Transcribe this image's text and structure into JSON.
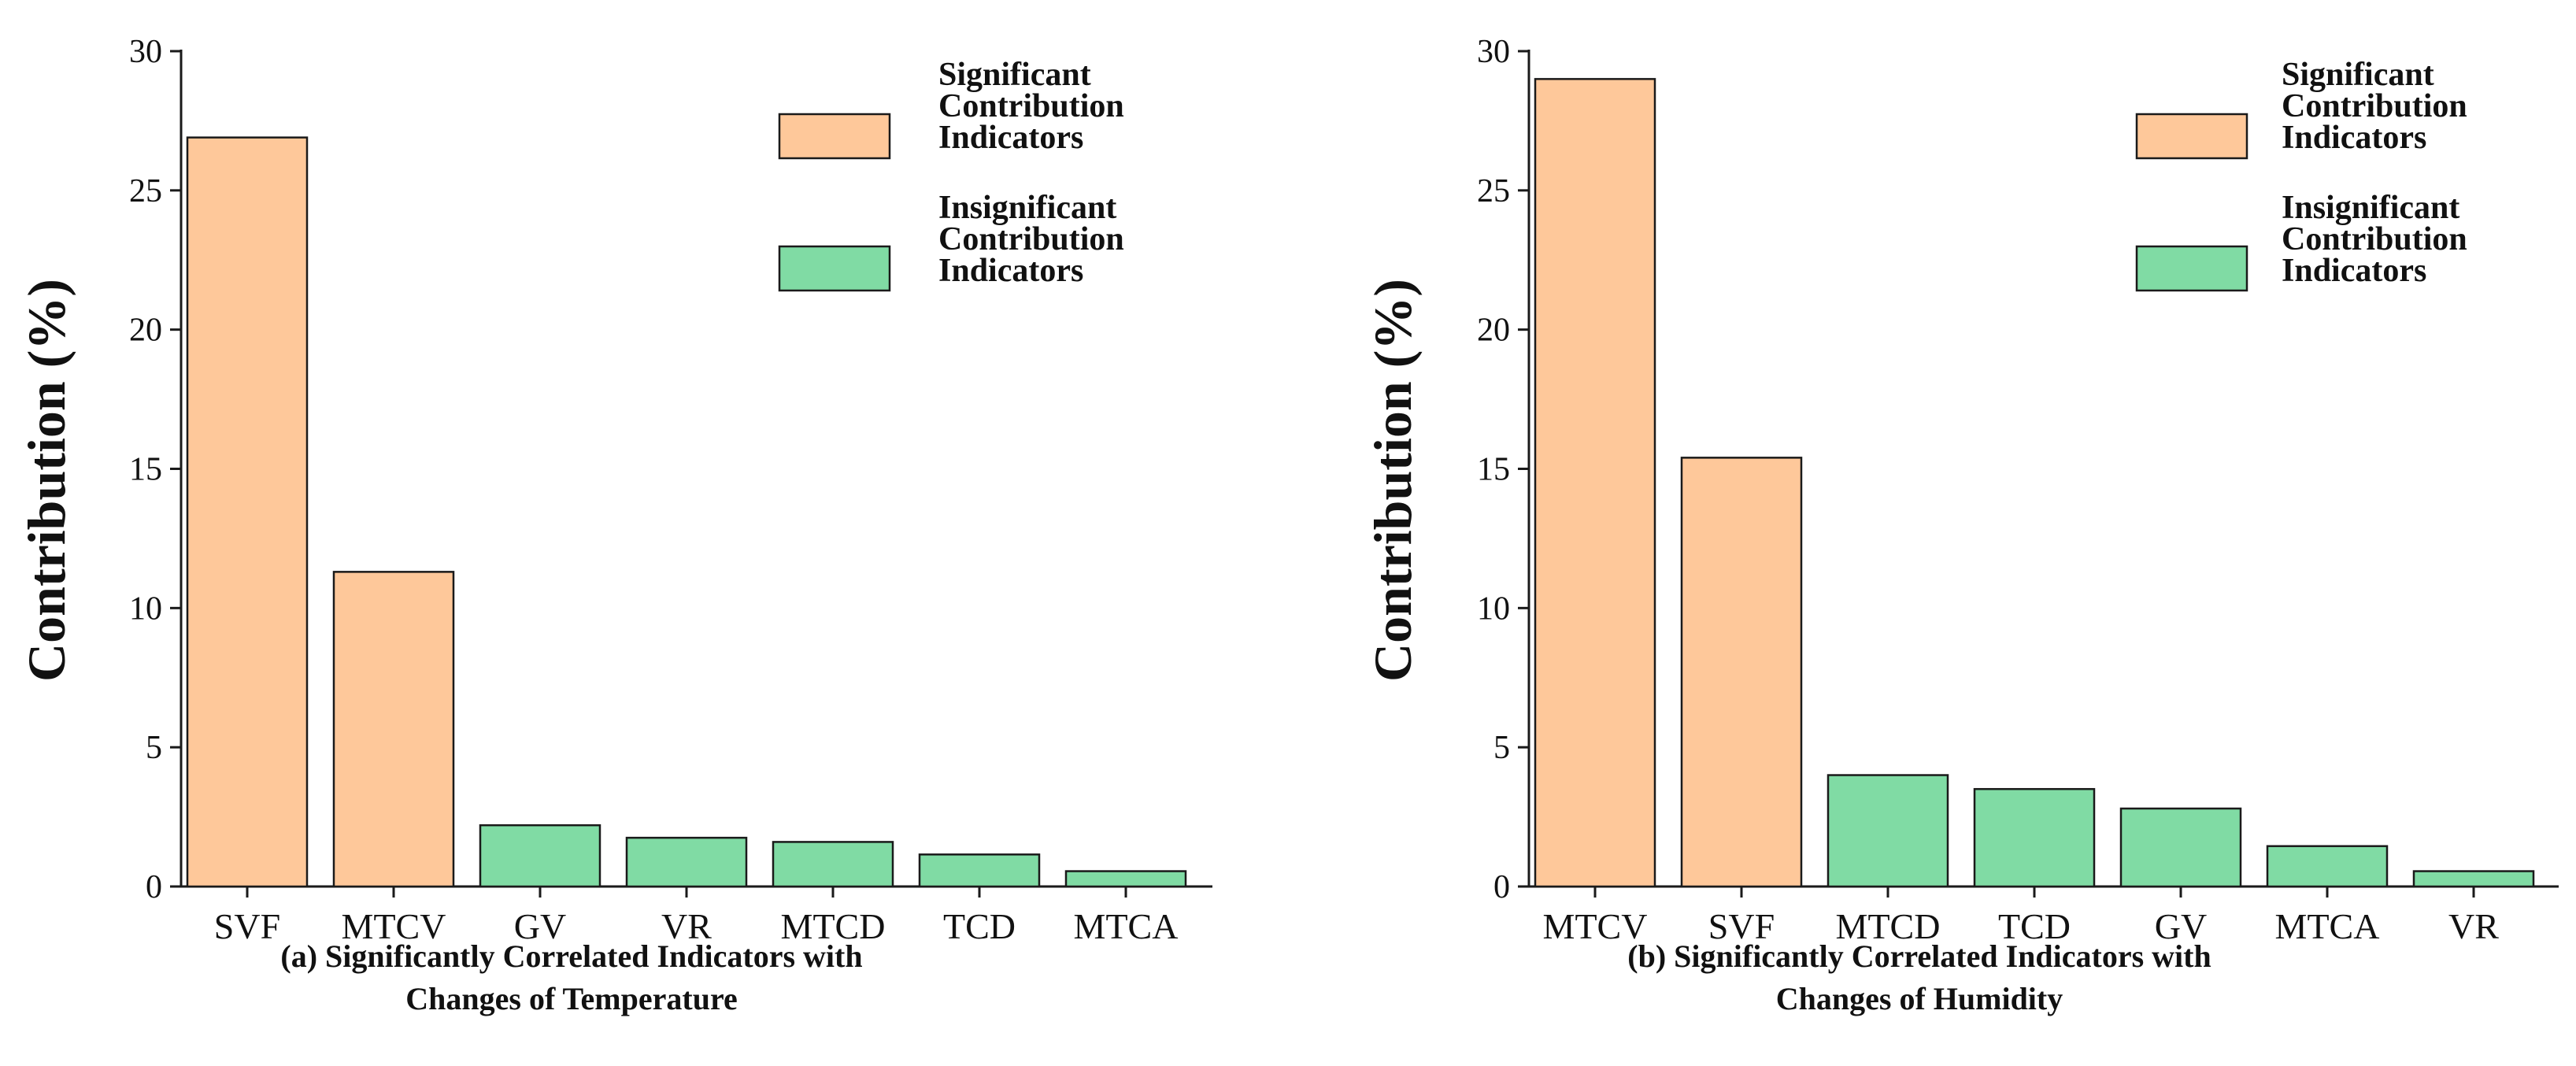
{
  "colors": {
    "significant": "#FEC89A",
    "insignificant": "#80DBA4",
    "stroke": "#1a1a1a"
  },
  "chart_data": [
    {
      "type": "bar",
      "panel": "a",
      "categories": [
        "SVF",
        "MTCV",
        "GV",
        "VR",
        "MTCD",
        "TCD",
        "MTCA"
      ],
      "values": [
        26.9,
        11.3,
        2.2,
        1.75,
        1.6,
        1.15,
        0.55
      ],
      "significance": [
        "significant",
        "significant",
        "insignificant",
        "insignificant",
        "insignificant",
        "insignificant",
        "insignificant"
      ],
      "ylabel": "Contribution (%)",
      "xlabel": "",
      "ylim": [
        0,
        30
      ],
      "yticks": [
        0,
        5,
        10,
        15,
        20,
        25,
        30
      ],
      "caption_lines": [
        "(a) Significantly Correlated Indicators with",
        "Changes of Temperature"
      ],
      "legend": [
        {
          "key": "significant",
          "lines": [
            "Significant",
            "Contribution",
            "Indicators"
          ]
        },
        {
          "key": "insignificant",
          "lines": [
            "Insignificant",
            "Contribution",
            "Indicators"
          ]
        }
      ],
      "legend_position": "top-right"
    },
    {
      "type": "bar",
      "panel": "b",
      "categories": [
        "MTCV",
        "SVF",
        "MTCD",
        "TCD",
        "GV",
        "MTCA",
        "VR"
      ],
      "values": [
        29.0,
        15.4,
        4.0,
        3.5,
        2.8,
        1.45,
        0.55
      ],
      "significance": [
        "significant",
        "significant",
        "insignificant",
        "insignificant",
        "insignificant",
        "insignificant",
        "insignificant"
      ],
      "ylabel": "Contribution (%)",
      "xlabel": "",
      "ylim": [
        0,
        30
      ],
      "yticks": [
        0,
        5,
        10,
        15,
        20,
        25,
        30
      ],
      "caption_lines": [
        "(b) Significantly Correlated Indicators with",
        "Changes of Humidity"
      ],
      "legend": [
        {
          "key": "significant",
          "lines": [
            "Significant",
            "Contribution",
            "Indicators"
          ]
        },
        {
          "key": "insignificant",
          "lines": [
            "Insignificant",
            "Contribution",
            "Indicators"
          ]
        }
      ],
      "legend_position": "top-right"
    }
  ]
}
